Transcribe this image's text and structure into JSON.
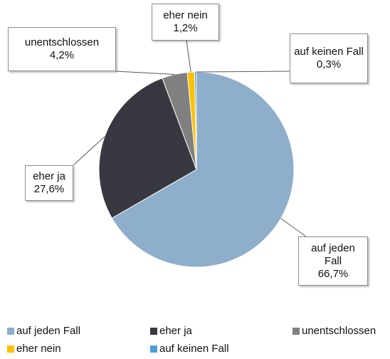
{
  "chart_data": {
    "type": "pie",
    "categories": [
      "auf jeden Fall",
      "eher ja",
      "unentschlossen",
      "eher nein",
      "auf keinen Fall"
    ],
    "values": [
      66.7,
      27.6,
      4.2,
      1.2,
      0.3
    ],
    "value_labels": [
      "66,7%",
      "27,6%",
      "4,2%",
      "1,2%",
      "0,3%"
    ],
    "colors": [
      "#8eaecb",
      "#383840",
      "#808080",
      "#ffc000",
      "#4a9fd8"
    ],
    "legend": "bottom"
  }
}
